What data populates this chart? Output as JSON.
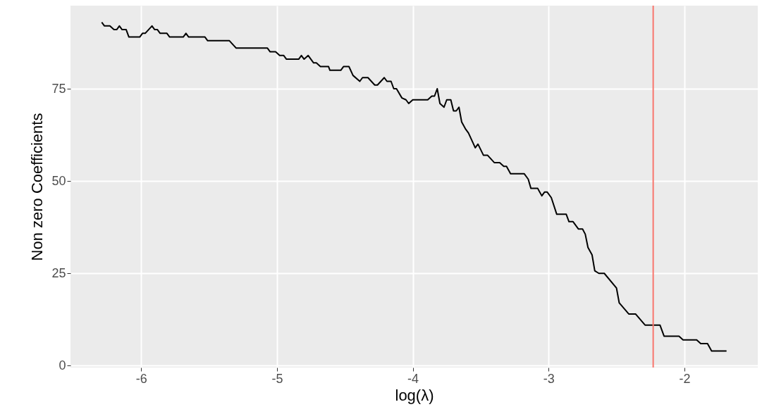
{
  "chart_data": {
    "type": "line",
    "xlabel": "log(λ)",
    "ylabel": "Non zero Coefficients",
    "xlim": [
      -6.52,
      -1.46
    ],
    "ylim": [
      -0.5,
      97.5
    ],
    "xticks": [
      -6,
      -5,
      -4,
      -3,
      -2
    ],
    "yticks": [
      0,
      25,
      50,
      75
    ],
    "grid": true,
    "x": [
      -6.29,
      -6.27,
      -6.23,
      -6.2,
      -6.18,
      -6.16,
      -6.14,
      -6.11,
      -6.09,
      -6.01,
      -5.99,
      -5.97,
      -5.92,
      -5.9,
      -5.88,
      -5.86,
      -5.81,
      -5.79,
      -5.69,
      -5.67,
      -5.65,
      -5.53,
      -5.51,
      -5.35,
      -5.3,
      -5.07,
      -5.05,
      -5.01,
      -4.98,
      -4.95,
      -4.93,
      -4.84,
      -4.82,
      -4.8,
      -4.77,
      -4.73,
      -4.71,
      -4.68,
      -4.67,
      -4.62,
      -4.61,
      -4.53,
      -4.51,
      -4.47,
      -4.44,
      -4.39,
      -4.37,
      -4.33,
      -4.28,
      -4.26,
      -4.21,
      -4.19,
      -4.16,
      -4.14,
      -4.12,
      -4.08,
      -4.05,
      -4.03,
      -4.0,
      -3.89,
      -3.86,
      -3.84,
      -3.82,
      -3.8,
      -3.77,
      -3.75,
      -3.72,
      -3.7,
      -3.68,
      -3.66,
      -3.64,
      -3.61,
      -3.59,
      -3.54,
      -3.52,
      -3.48,
      -3.45,
      -3.4,
      -3.36,
      -3.33,
      -3.31,
      -3.28,
      -3.18,
      -3.15,
      -3.13,
      -3.08,
      -3.05,
      -3.03,
      -3.01,
      -2.98,
      -2.94,
      -2.87,
      -2.85,
      -2.82,
      -2.78,
      -2.75,
      -2.73,
      -2.71,
      -2.68,
      -2.66,
      -2.63,
      -2.59,
      -2.5,
      -2.48,
      -2.41,
      -2.36,
      -2.29,
      -2.18,
      -2.15,
      -2.04,
      -2.01,
      -1.91,
      -1.88,
      -1.83,
      -1.8,
      -1.69
    ],
    "series": [
      {
        "color": "#000000",
        "values": [
          93,
          92,
          92,
          91,
          91,
          92,
          91,
          91,
          89,
          89,
          90,
          90,
          92,
          91,
          91,
          90,
          90,
          89,
          89,
          90,
          89,
          89,
          88,
          88,
          86,
          86,
          85,
          85,
          84,
          84,
          83,
          83,
          84,
          83,
          84,
          82,
          82,
          81,
          81,
          81,
          80,
          80,
          81,
          81,
          78.6,
          77,
          78,
          78,
          76,
          76,
          78,
          77,
          77,
          75,
          75,
          72.5,
          72,
          71,
          72,
          72,
          73,
          73,
          75,
          71,
          70,
          72,
          72,
          69,
          69,
          70,
          66,
          64,
          63,
          59,
          60,
          57,
          57,
          55,
          55,
          54,
          54,
          52,
          52,
          50.5,
          48,
          48,
          46,
          47,
          47,
          45.5,
          41,
          41,
          39,
          39,
          37,
          37,
          35.6,
          32,
          30,
          25.7,
          25,
          25,
          21,
          17,
          14,
          14,
          11,
          11,
          8,
          8,
          7,
          7,
          6,
          6,
          4,
          4
        ]
      }
    ],
    "ref_lines": [
      {
        "axis": "x",
        "value": -2.23,
        "color": "#f8766d"
      }
    ]
  }
}
